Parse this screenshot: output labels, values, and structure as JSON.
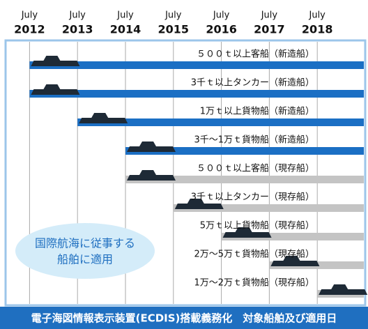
{
  "chart_data": {
    "type": "timeline",
    "title": "電子海図情報表示装置(ECDIS)搭載義務化　対象船舶及び適用日",
    "tick_month": "July",
    "xlim": [
      2011.5,
      2019
    ],
    "xticks": [
      2012,
      2013,
      2014,
      2015,
      2016,
      2017,
      2018
    ],
    "annotation": [
      "国際航海に従事する",
      "船舶に適用"
    ],
    "rows": [
      {
        "label": "５００ｔ以上客船",
        "status": "（新造船）",
        "start": 2012,
        "color": "#1b6fc4"
      },
      {
        "label": "3千ｔ以上タンカー",
        "status": "（新造船）",
        "start": 2012,
        "color": "#1b6fc4"
      },
      {
        "label": "1万ｔ以上貨物船",
        "status": "（新造船）",
        "start": 2013,
        "color": "#1b6fc4"
      },
      {
        "label": "3千～1万ｔ貨物船",
        "status": "（新造船）",
        "start": 2014,
        "color": "#1b6fc4"
      },
      {
        "label": "５００ｔ以上客船",
        "status": "（現存船）",
        "start": 2014,
        "color": "#c4c4c4"
      },
      {
        "label": "3千ｔ以上タンカー",
        "status": "（現存船）",
        "start": 2015,
        "color": "#c4c4c4"
      },
      {
        "label": "5万ｔ以上貨物船",
        "status": "（現存船）",
        "start": 2016,
        "color": "#c4c4c4"
      },
      {
        "label": "2万～5万ｔ貨物船",
        "status": "（現存船）",
        "start": 2017,
        "color": "#c4c4c4"
      },
      {
        "label": "1万～2万ｔ貨物船",
        "status": "（現存船）",
        "start": 2018,
        "color": "#c4c4c4"
      }
    ]
  }
}
